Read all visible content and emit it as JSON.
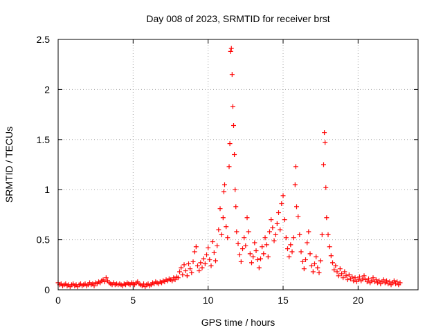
{
  "chart_data": {
    "type": "scatter",
    "title": "Day 008 of 2023, SRMTID for receiver brst",
    "xlabel": "GPS time / hours",
    "ylabel": "SRMTID / TECUs",
    "xlim": [
      0,
      24
    ],
    "ylim": [
      0,
      2.5
    ],
    "xticks": [
      0,
      5,
      10,
      15,
      20
    ],
    "xtick_labels": [
      "0",
      "5",
      "10",
      "15",
      "20"
    ],
    "yticks": [
      0,
      0.5,
      1,
      1.5,
      2,
      2.5
    ],
    "ytick_labels": [
      "0",
      "0.5",
      "1",
      "1.5",
      "2",
      "2.5"
    ],
    "grid": true,
    "marker": "+",
    "marker_color": "#ff0000",
    "series": [
      {
        "name": "brst",
        "points": [
          [
            0.0,
            0.07
          ],
          [
            0.1,
            0.05
          ],
          [
            0.2,
            0.06
          ],
          [
            0.3,
            0.04
          ],
          [
            0.4,
            0.05
          ],
          [
            0.5,
            0.06
          ],
          [
            0.6,
            0.04
          ],
          [
            0.7,
            0.05
          ],
          [
            0.8,
            0.03
          ],
          [
            0.9,
            0.05
          ],
          [
            1.0,
            0.06
          ],
          [
            1.1,
            0.04
          ],
          [
            1.2,
            0.05
          ],
          [
            1.3,
            0.03
          ],
          [
            1.4,
            0.05
          ],
          [
            1.5,
            0.06
          ],
          [
            1.6,
            0.04
          ],
          [
            1.7,
            0.05
          ],
          [
            1.8,
            0.06
          ],
          [
            1.9,
            0.04
          ],
          [
            2.0,
            0.05
          ],
          [
            2.1,
            0.07
          ],
          [
            2.2,
            0.05
          ],
          [
            2.3,
            0.06
          ],
          [
            2.4,
            0.04
          ],
          [
            2.5,
            0.07
          ],
          [
            2.6,
            0.06
          ],
          [
            2.7,
            0.08
          ],
          [
            2.8,
            0.07
          ],
          [
            2.9,
            0.09
          ],
          [
            3.0,
            0.1
          ],
          [
            3.1,
            0.08
          ],
          [
            3.2,
            0.12
          ],
          [
            3.3,
            0.09
          ],
          [
            3.4,
            0.07
          ],
          [
            3.5,
            0.06
          ],
          [
            3.6,
            0.05
          ],
          [
            3.7,
            0.07
          ],
          [
            3.8,
            0.05
          ],
          [
            3.9,
            0.06
          ],
          [
            4.0,
            0.05
          ],
          [
            4.1,
            0.06
          ],
          [
            4.2,
            0.05
          ],
          [
            4.3,
            0.04
          ],
          [
            4.4,
            0.06
          ],
          [
            4.5,
            0.05
          ],
          [
            4.6,
            0.07
          ],
          [
            4.7,
            0.06
          ],
          [
            4.8,
            0.05
          ],
          [
            4.9,
            0.07
          ],
          [
            5.0,
            0.06
          ],
          [
            5.1,
            0.05
          ],
          [
            5.2,
            0.07
          ],
          [
            5.3,
            0.08
          ],
          [
            5.4,
            0.06
          ],
          [
            5.5,
            0.05
          ],
          [
            5.6,
            0.04
          ],
          [
            5.7,
            0.06
          ],
          [
            5.8,
            0.03
          ],
          [
            5.9,
            0.05
          ],
          [
            6.0,
            0.06
          ],
          [
            6.1,
            0.04
          ],
          [
            6.2,
            0.05
          ],
          [
            6.3,
            0.07
          ],
          [
            6.4,
            0.06
          ],
          [
            6.5,
            0.08
          ],
          [
            6.6,
            0.07
          ],
          [
            6.7,
            0.06
          ],
          [
            6.8,
            0.08
          ],
          [
            6.9,
            0.07
          ],
          [
            7.0,
            0.09
          ],
          [
            7.1,
            0.08
          ],
          [
            7.2,
            0.1
          ],
          [
            7.3,
            0.09
          ],
          [
            7.4,
            0.11
          ],
          [
            7.5,
            0.1
          ],
          [
            7.6,
            0.09
          ],
          [
            7.7,
            0.12
          ],
          [
            7.8,
            0.1
          ],
          [
            7.9,
            0.13
          ],
          [
            8.0,
            0.12
          ],
          [
            8.1,
            0.18
          ],
          [
            8.2,
            0.22
          ],
          [
            8.3,
            0.15
          ],
          [
            8.4,
            0.25
          ],
          [
            8.5,
            0.19
          ],
          [
            8.6,
            0.14
          ],
          [
            8.7,
            0.26
          ],
          [
            8.8,
            0.21
          ],
          [
            8.9,
            0.17
          ],
          [
            9.0,
            0.28
          ],
          [
            9.1,
            0.38
          ],
          [
            9.2,
            0.43
          ],
          [
            9.3,
            0.24
          ],
          [
            9.4,
            0.19
          ],
          [
            9.5,
            0.27
          ],
          [
            9.6,
            0.22
          ],
          [
            9.7,
            0.31
          ],
          [
            9.8,
            0.26
          ],
          [
            9.9,
            0.35
          ],
          [
            10.0,
            0.42
          ],
          [
            10.1,
            0.3
          ],
          [
            10.2,
            0.24
          ],
          [
            10.3,
            0.48
          ],
          [
            10.4,
            0.37
          ],
          [
            10.5,
            0.29
          ],
          [
            10.6,
            0.44
          ],
          [
            10.7,
            0.6
          ],
          [
            10.8,
            0.81
          ],
          [
            10.9,
            0.55
          ],
          [
            11.0,
            0.72
          ],
          [
            11.05,
            0.98
          ],
          [
            11.1,
            1.05
          ],
          [
            11.2,
            0.63
          ],
          [
            11.3,
            0.52
          ],
          [
            11.4,
            1.23
          ],
          [
            11.45,
            1.46
          ],
          [
            11.5,
            2.38
          ],
          [
            11.55,
            2.41
          ],
          [
            11.6,
            2.15
          ],
          [
            11.65,
            1.83
          ],
          [
            11.7,
            1.64
          ],
          [
            11.75,
            1.35
          ],
          [
            11.8,
            1.0
          ],
          [
            11.85,
            0.83
          ],
          [
            11.9,
            0.58
          ],
          [
            12.0,
            0.46
          ],
          [
            12.1,
            0.35
          ],
          [
            12.2,
            0.28
          ],
          [
            12.3,
            0.41
          ],
          [
            12.4,
            0.52
          ],
          [
            12.5,
            0.44
          ],
          [
            12.6,
            0.72
          ],
          [
            12.7,
            0.58
          ],
          [
            12.8,
            0.36
          ],
          [
            12.9,
            0.27
          ],
          [
            13.0,
            0.33
          ],
          [
            13.1,
            0.47
          ],
          [
            13.2,
            0.39
          ],
          [
            13.3,
            0.3
          ],
          [
            13.4,
            0.22
          ],
          [
            13.5,
            0.31
          ],
          [
            13.6,
            0.43
          ],
          [
            13.7,
            0.36
          ],
          [
            13.8,
            0.52
          ],
          [
            13.9,
            0.45
          ],
          [
            14.0,
            0.33
          ],
          [
            14.1,
            0.58
          ],
          [
            14.2,
            0.7
          ],
          [
            14.3,
            0.62
          ],
          [
            14.4,
            0.49
          ],
          [
            14.5,
            0.55
          ],
          [
            14.6,
            0.66
          ],
          [
            14.7,
            0.77
          ],
          [
            14.8,
            0.6
          ],
          [
            14.9,
            0.86
          ],
          [
            15.0,
            0.94
          ],
          [
            15.1,
            0.7
          ],
          [
            15.2,
            0.52
          ],
          [
            15.3,
            0.41
          ],
          [
            15.4,
            0.33
          ],
          [
            15.5,
            0.45
          ],
          [
            15.6,
            0.38
          ],
          [
            15.7,
            0.52
          ],
          [
            15.8,
            1.05
          ],
          [
            15.85,
            1.23
          ],
          [
            15.9,
            0.83
          ],
          [
            16.0,
            0.73
          ],
          [
            16.1,
            0.55
          ],
          [
            16.2,
            0.38
          ],
          [
            16.3,
            0.28
          ],
          [
            16.4,
            0.21
          ],
          [
            16.5,
            0.3
          ],
          [
            16.6,
            0.47
          ],
          [
            16.7,
            0.58
          ],
          [
            16.8,
            0.36
          ],
          [
            16.9,
            0.24
          ],
          [
            17.0,
            0.18
          ],
          [
            17.1,
            0.26
          ],
          [
            17.2,
            0.33
          ],
          [
            17.3,
            0.22
          ],
          [
            17.4,
            0.17
          ],
          [
            17.5,
            0.29
          ],
          [
            17.6,
            0.55
          ],
          [
            17.7,
            1.25
          ],
          [
            17.75,
            1.57
          ],
          [
            17.8,
            1.47
          ],
          [
            17.85,
            1.02
          ],
          [
            17.9,
            0.72
          ],
          [
            18.0,
            0.55
          ],
          [
            18.1,
            0.43
          ],
          [
            18.2,
            0.34
          ],
          [
            18.3,
            0.27
          ],
          [
            18.4,
            0.2
          ],
          [
            18.5,
            0.24
          ],
          [
            18.6,
            0.18
          ],
          [
            18.7,
            0.14
          ],
          [
            18.8,
            0.21
          ],
          [
            18.9,
            0.16
          ],
          [
            19.0,
            0.12
          ],
          [
            19.1,
            0.18
          ],
          [
            19.2,
            0.14
          ],
          [
            19.3,
            0.1
          ],
          [
            19.4,
            0.15
          ],
          [
            19.5,
            0.11
          ],
          [
            19.6,
            0.13
          ],
          [
            19.7,
            0.09
          ],
          [
            19.8,
            0.12
          ],
          [
            19.9,
            0.08
          ],
          [
            20.0,
            0.1
          ],
          [
            20.1,
            0.13
          ],
          [
            20.2,
            0.09
          ],
          [
            20.3,
            0.11
          ],
          [
            20.4,
            0.14
          ],
          [
            20.5,
            0.1
          ],
          [
            20.6,
            0.08
          ],
          [
            20.7,
            0.11
          ],
          [
            20.8,
            0.07
          ],
          [
            20.9,
            0.09
          ],
          [
            21.0,
            0.12
          ],
          [
            21.1,
            0.08
          ],
          [
            21.2,
            0.1
          ],
          [
            21.3,
            0.07
          ],
          [
            21.4,
            0.09
          ],
          [
            21.5,
            0.06
          ],
          [
            21.6,
            0.08
          ],
          [
            21.7,
            0.1
          ],
          [
            21.8,
            0.07
          ],
          [
            21.9,
            0.09
          ],
          [
            22.0,
            0.06
          ],
          [
            22.1,
            0.08
          ],
          [
            22.2,
            0.05
          ],
          [
            22.3,
            0.07
          ],
          [
            22.4,
            0.09
          ],
          [
            22.5,
            0.06
          ],
          [
            22.6,
            0.08
          ],
          [
            22.7,
            0.05
          ],
          [
            22.8,
            0.07
          ]
        ]
      }
    ]
  }
}
